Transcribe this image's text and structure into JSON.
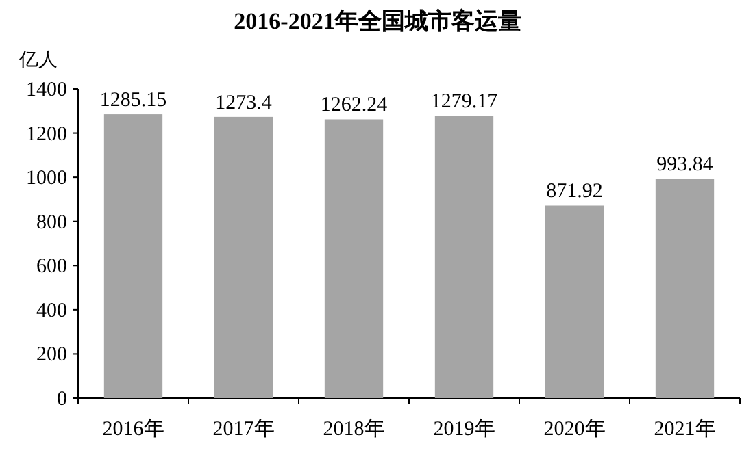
{
  "chart_data": {
    "type": "bar",
    "title": "2016-2021年全国城市客运量",
    "ylabel": "亿人",
    "categories": [
      "2016年",
      "2017年",
      "2018年",
      "2019年",
      "2020年",
      "2021年"
    ],
    "values": [
      1285.15,
      1273.4,
      1262.24,
      1279.17,
      871.92,
      993.84
    ],
    "color": "#a5a5a5",
    "ylim": [
      0,
      1400
    ],
    "yticks": [
      0,
      200,
      400,
      600,
      800,
      1000,
      1200,
      1400
    ],
    "data_labels": true
  }
}
